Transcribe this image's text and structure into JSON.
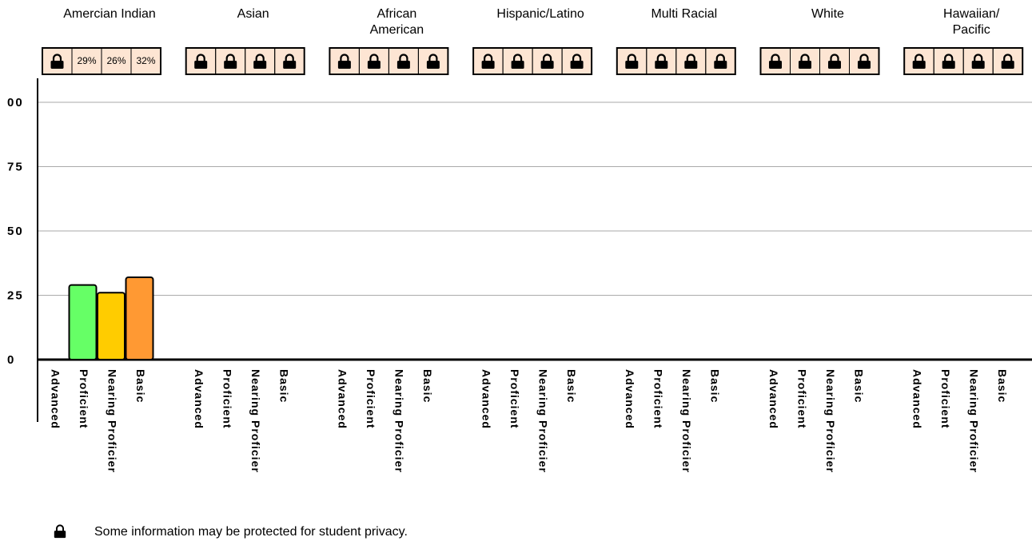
{
  "chart_data": {
    "type": "bar",
    "categories": [
      "Advanced",
      "Proficient",
      "Nearing Proficier",
      "Basic"
    ],
    "colors": [
      null,
      "#66ff66",
      "#ffcc00",
      "#ff9933"
    ],
    "groups": [
      {
        "name": "Amercian Indian",
        "values": [
          null,
          29,
          26,
          32
        ],
        "value_labels": [
          null,
          "29%",
          "26%",
          "32%"
        ]
      },
      {
        "name": "Asian",
        "values": [
          null,
          null,
          null,
          null
        ]
      },
      {
        "name": "African American",
        "values": [
          null,
          null,
          null,
          null
        ]
      },
      {
        "name": "Hispanic/Latino",
        "values": [
          null,
          null,
          null,
          null
        ]
      },
      {
        "name": "Multi Racial",
        "values": [
          null,
          null,
          null,
          null
        ]
      },
      {
        "name": "White",
        "values": [
          null,
          null,
          null,
          null
        ]
      },
      {
        "name": "Hawaiian/ Pacific",
        "values": [
          null,
          null,
          null,
          null
        ]
      }
    ],
    "ylim": [
      0,
      100
    ],
    "yticks": [
      0,
      25,
      50,
      75,
      {
        "value": 100,
        "label": "00"
      }
    ],
    "grid": true,
    "note": "Some information may be protected for student privacy."
  }
}
